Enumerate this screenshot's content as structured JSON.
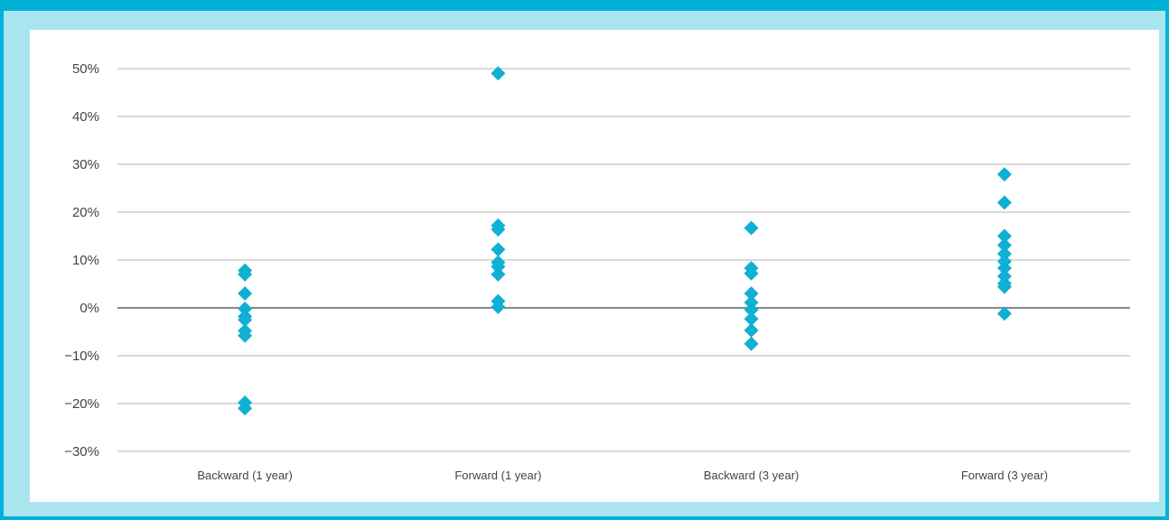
{
  "colors": {
    "outer_border": "#00b1d8",
    "frame": "#a9e5ef",
    "panel": "#ffffff",
    "marker": "#0fb0d4",
    "gridline": "#b5b5b5",
    "zero_line": "#444444",
    "text": "#444444"
  },
  "chart_data": {
    "type": "scatter",
    "marker": "diamond",
    "title": "",
    "xlabel": "",
    "ylabel": "",
    "categories": [
      "Backward (1 year)",
      "Forward (1 year)",
      "Backward (3 year)",
      "Forward (3 year)"
    ],
    "ylim": [
      -30,
      50
    ],
    "y_ticks": [
      50,
      40,
      30,
      20,
      10,
      0,
      -10,
      -20,
      -30
    ],
    "y_tick_labels": [
      "50%",
      "40%",
      "30%",
      "20%",
      "10%",
      "0%",
      "−10%",
      "−20%",
      "−30%"
    ],
    "grid": true,
    "legend": "none",
    "series": [
      {
        "category": "Backward (1 year)",
        "values": [
          7.8,
          7.0,
          3.0,
          -0.2,
          -1.8,
          -2.5,
          -4.8,
          -5.8,
          -19.8,
          -21.0
        ]
      },
      {
        "category": "Forward (1 year)",
        "values": [
          49.0,
          17.2,
          16.4,
          12.2,
          9.5,
          8.6,
          7.0,
          1.4,
          0.2
        ]
      },
      {
        "category": "Backward (3 year)",
        "values": [
          16.7,
          8.3,
          7.2,
          3.0,
          1.1,
          -0.4,
          -2.3,
          -4.7,
          -7.5
        ]
      },
      {
        "category": "Forward (3 year)",
        "values": [
          27.9,
          22.0,
          15.0,
          13.1,
          11.3,
          9.7,
          8.3,
          6.6,
          5.1,
          4.4,
          -1.2
        ]
      }
    ]
  }
}
